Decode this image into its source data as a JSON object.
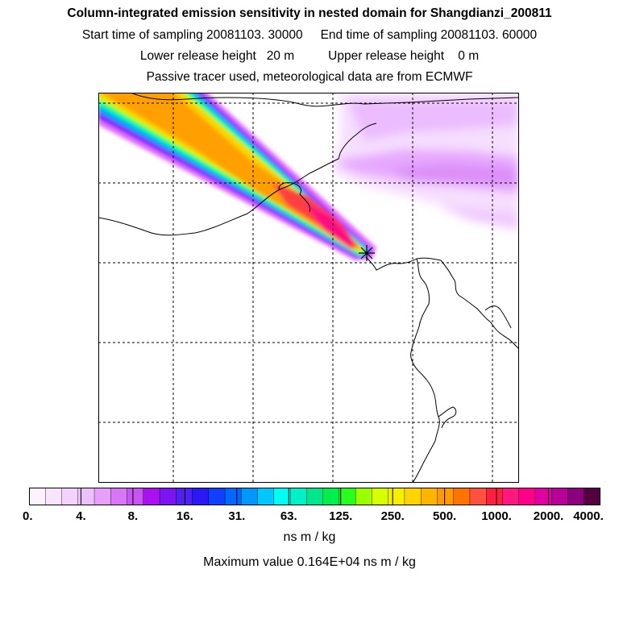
{
  "header": {
    "title": "Column-integrated emission sensitivity in nested domain for Shangdianzi_200811",
    "start_label": "Start time of sampling 20081103. 30000",
    "end_label": "End time of sampling 20081103. 60000",
    "lower_label": "Lower release height   20 m",
    "upper_label": "Upper release height    0 m",
    "note": "Passive tracer used, meteorological data are from ECMWF"
  },
  "map": {
    "site_marker": "receptor-star-icon",
    "plume_colors": [
      "#f0d0ff",
      "#e070ff",
      "#8000ff",
      "#0090ff",
      "#00e8d0",
      "#30ff60",
      "#c0ff00",
      "#ffd000",
      "#ffa000",
      "#ff4040",
      "#ff1080"
    ]
  },
  "colorbar": {
    "colors": [
      "#fdf3ff",
      "#f8e4fe",
      "#f3d2fd",
      "#edc0fc",
      "#e6a0fa",
      "#d876f7",
      "#c855f2",
      "#aa10f0",
      "#7b14ef",
      "#5020f0",
      "#2b18f5",
      "#1040ff",
      "#0068ff",
      "#0098ff",
      "#00c8ff",
      "#00fff2",
      "#00f0c8",
      "#00e68c",
      "#00ef4a",
      "#28ff1c",
      "#9cff00",
      "#d8ff00",
      "#f4f000",
      "#ffd400",
      "#ffb400",
      "#ff9a00",
      "#ff7400",
      "#ff5040",
      "#ff2040",
      "#ff1880",
      "#ff0088",
      "#e000a0",
      "#b80098",
      "#8c007e",
      "#55003e"
    ],
    "labels": [
      "0.",
      "4.",
      "8.",
      "16.",
      "31.",
      "63.",
      "125.",
      "250.",
      "500.",
      "1000.",
      "2000.",
      "4000."
    ],
    "units": "ns m / kg",
    "max_text": "Maximum value  0.164E+04 ns m / kg"
  }
}
